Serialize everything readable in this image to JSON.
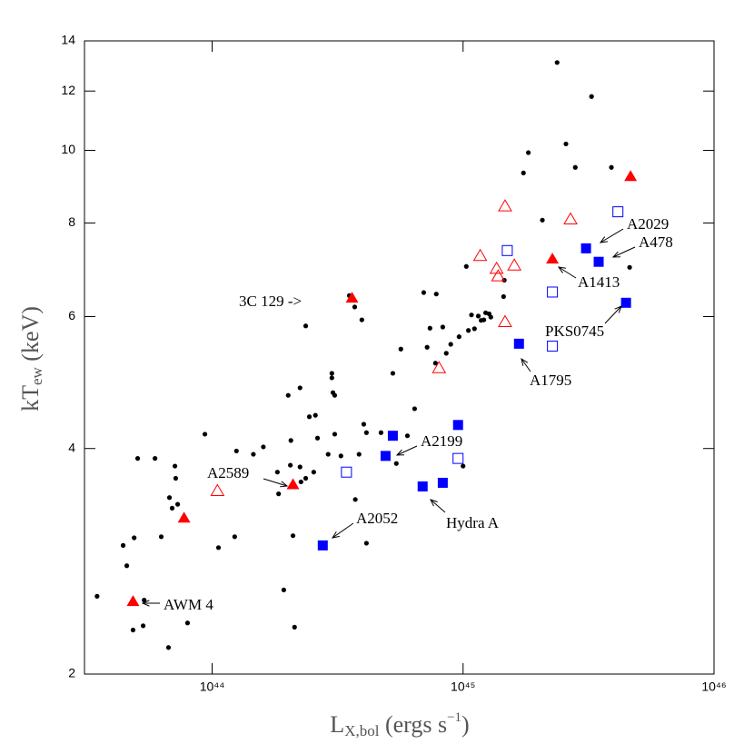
{
  "chart_data": {
    "type": "scatter",
    "xlabel": {
      "main": "L",
      "sub": "X,bol",
      "rest": " (ergs s",
      "sup": "−1",
      "end": ")"
    },
    "ylabel": {
      "main": "kT",
      "sub": "ew",
      "rest": " (keV)"
    },
    "xscale": "log",
    "yscale": "log",
    "xlim": [
      3.1e+43,
      1e+46
    ],
    "ylim": [
      2,
      14
    ],
    "xticks": [
      {
        "value": 1e+44,
        "label": "10⁴⁴"
      },
      {
        "value": 1e+45,
        "label": "10⁴⁵"
      },
      {
        "value": 1e+46,
        "label": "10⁴⁶"
      }
    ],
    "yticks": [
      2,
      4,
      6,
      8,
      10,
      12,
      14
    ],
    "series": [
      {
        "marker": "dot",
        "color": "#000000",
        "x": [
          3.48e+43,
          4.42e+43,
          4.57e+43,
          4.89e+43,
          5.05e+43,
          4.84e+43,
          5.31e+43,
          5.36e+43,
          5.92e+43,
          6.27e+43,
          6.7e+43,
          7.11e+43,
          7.16e+43,
          7.29e+43,
          6.76e+43,
          6.93e+43,
          7.98e+43,
          1.06e+44,
          9.36e+43,
          1.23e+44,
          1.25e+44,
          1.46e+44,
          1.6e+44,
          1.84e+44,
          1.82e+44,
          1.93e+44,
          2.01e+44,
          2.06e+44,
          2.05e+44,
          2.1e+44,
          2.13e+44,
          2.24e+44,
          2.24e+44,
          2.26e+44,
          2.36e+44,
          2.44e+44,
          2.54e+44,
          2.58e+44,
          2.63e+44,
          2.36e+44,
          2.9e+44,
          3e+44,
          3e+44,
          3.03e+44,
          3.08e+44,
          3.08e+44,
          3.26e+44,
          3.52e+44,
          3.72e+44,
          3.7e+44,
          3.85e+44,
          3.95e+44,
          4.02e+44,
          4.12e+44,
          4.12e+44,
          4.71e+44,
          5.12e+44,
          5.42e+44,
          6e+44,
          6.41e+44,
          5.25e+44,
          5.65e+44,
          6.97e+44,
          7.19e+44,
          7.38e+44,
          7.82e+44,
          7.76e+44,
          8.3e+44,
          8.57e+44,
          8.93e+44,
          9.64e+44,
          1e+45,
          1.05e+45,
          1.08e+45,
          1.11e+45,
          1.15e+45,
          1.18e+45,
          1.21e+45,
          1.23e+45,
          1.27e+45,
          1.29e+45,
          1.03e+45,
          1.45e+45,
          1.46e+45,
          1.74e+45,
          1.82e+45,
          2.07e+45,
          2.37e+45,
          2.57e+45,
          2.8e+45,
          3.25e+45,
          3.9e+45,
          4.61e+45
        ],
        "values": [
          2.54,
          2.97,
          2.79,
          3.04,
          3.88,
          2.29,
          2.32,
          2.51,
          3.88,
          3.05,
          2.17,
          3.79,
          3.65,
          3.37,
          3.44,
          3.33,
          2.34,
          2.95,
          4.18,
          3.05,
          3.97,
          3.93,
          4.02,
          3.48,
          3.72,
          2.59,
          4.71,
          4.1,
          3.8,
          3.06,
          2.31,
          4.82,
          3.78,
          3.61,
          3.65,
          4.41,
          3.72,
          4.43,
          4.13,
          5.83,
          3.93,
          5.04,
          4.97,
          4.75,
          4.71,
          4.18,
          3.91,
          6.4,
          3.42,
          6.18,
          3.93,
          5.94,
          4.31,
          2.99,
          4.2,
          4.2,
          4.18,
          3.82,
          4.16,
          4.52,
          5.04,
          5.43,
          6.46,
          5.46,
          5.79,
          6.43,
          5.2,
          5.81,
          5.36,
          5.51,
          5.64,
          3.79,
          5.75,
          6.03,
          5.78,
          6.01,
          5.93,
          5.94,
          6.07,
          6.05,
          5.99,
          7.0,
          6.38,
          6.71,
          9.33,
          9.93,
          8.07,
          13.1,
          10.2,
          9.49,
          11.8,
          9.49,
          6.98
        ]
      },
      {
        "marker": "triangle",
        "color": "#ff0000",
        "x": [
          4.84e+43,
          7.73e+43,
          2.1e+44,
          3.61e+44,
          2.27e+45,
          4.65e+45
        ],
        "values": [
          2.5,
          3.23,
          3.58,
          6.35,
          7.16,
          9.23
        ]
      },
      {
        "marker": "triangle-open",
        "color": "#ff0000",
        "x": [
          1.05e+44,
          8.02e+44,
          1.17e+45,
          1.36e+45,
          1.38e+45,
          1.47e+45,
          1.6e+45,
          1.47e+45,
          2.68e+45
        ],
        "values": [
          3.51,
          5.12,
          7.23,
          6.95,
          6.79,
          8.42,
          7.02,
          5.9,
          8.09
        ]
      },
      {
        "marker": "square",
        "color": "#0000ff",
        "x": [
          2.76e+44,
          4.91e+44,
          5.25e+44,
          6.9e+44,
          8.3e+44,
          9.55e+44,
          1.67e+45,
          3.09e+45,
          3.47e+45,
          4.46e+45
        ],
        "values": [
          2.97,
          3.91,
          4.16,
          3.56,
          3.6,
          4.3,
          5.52,
          7.4,
          7.1,
          6.26
        ]
      },
      {
        "marker": "square-open",
        "color": "#0000ff",
        "x": [
          3.43e+44,
          9.55e+44,
          1.5e+45,
          2.27e+45,
          2.27e+45,
          4.14e+45
        ],
        "values": [
          3.72,
          3.88,
          7.35,
          6.47,
          5.48,
          8.28
        ]
      }
    ],
    "annotations": [
      "3C 129 ->",
      "A2029",
      "A478",
      "A1413",
      "PKS0745",
      "A1795",
      "A2199",
      "A2589",
      "A2052",
      "Hydra A",
      "AWM 4"
    ]
  }
}
